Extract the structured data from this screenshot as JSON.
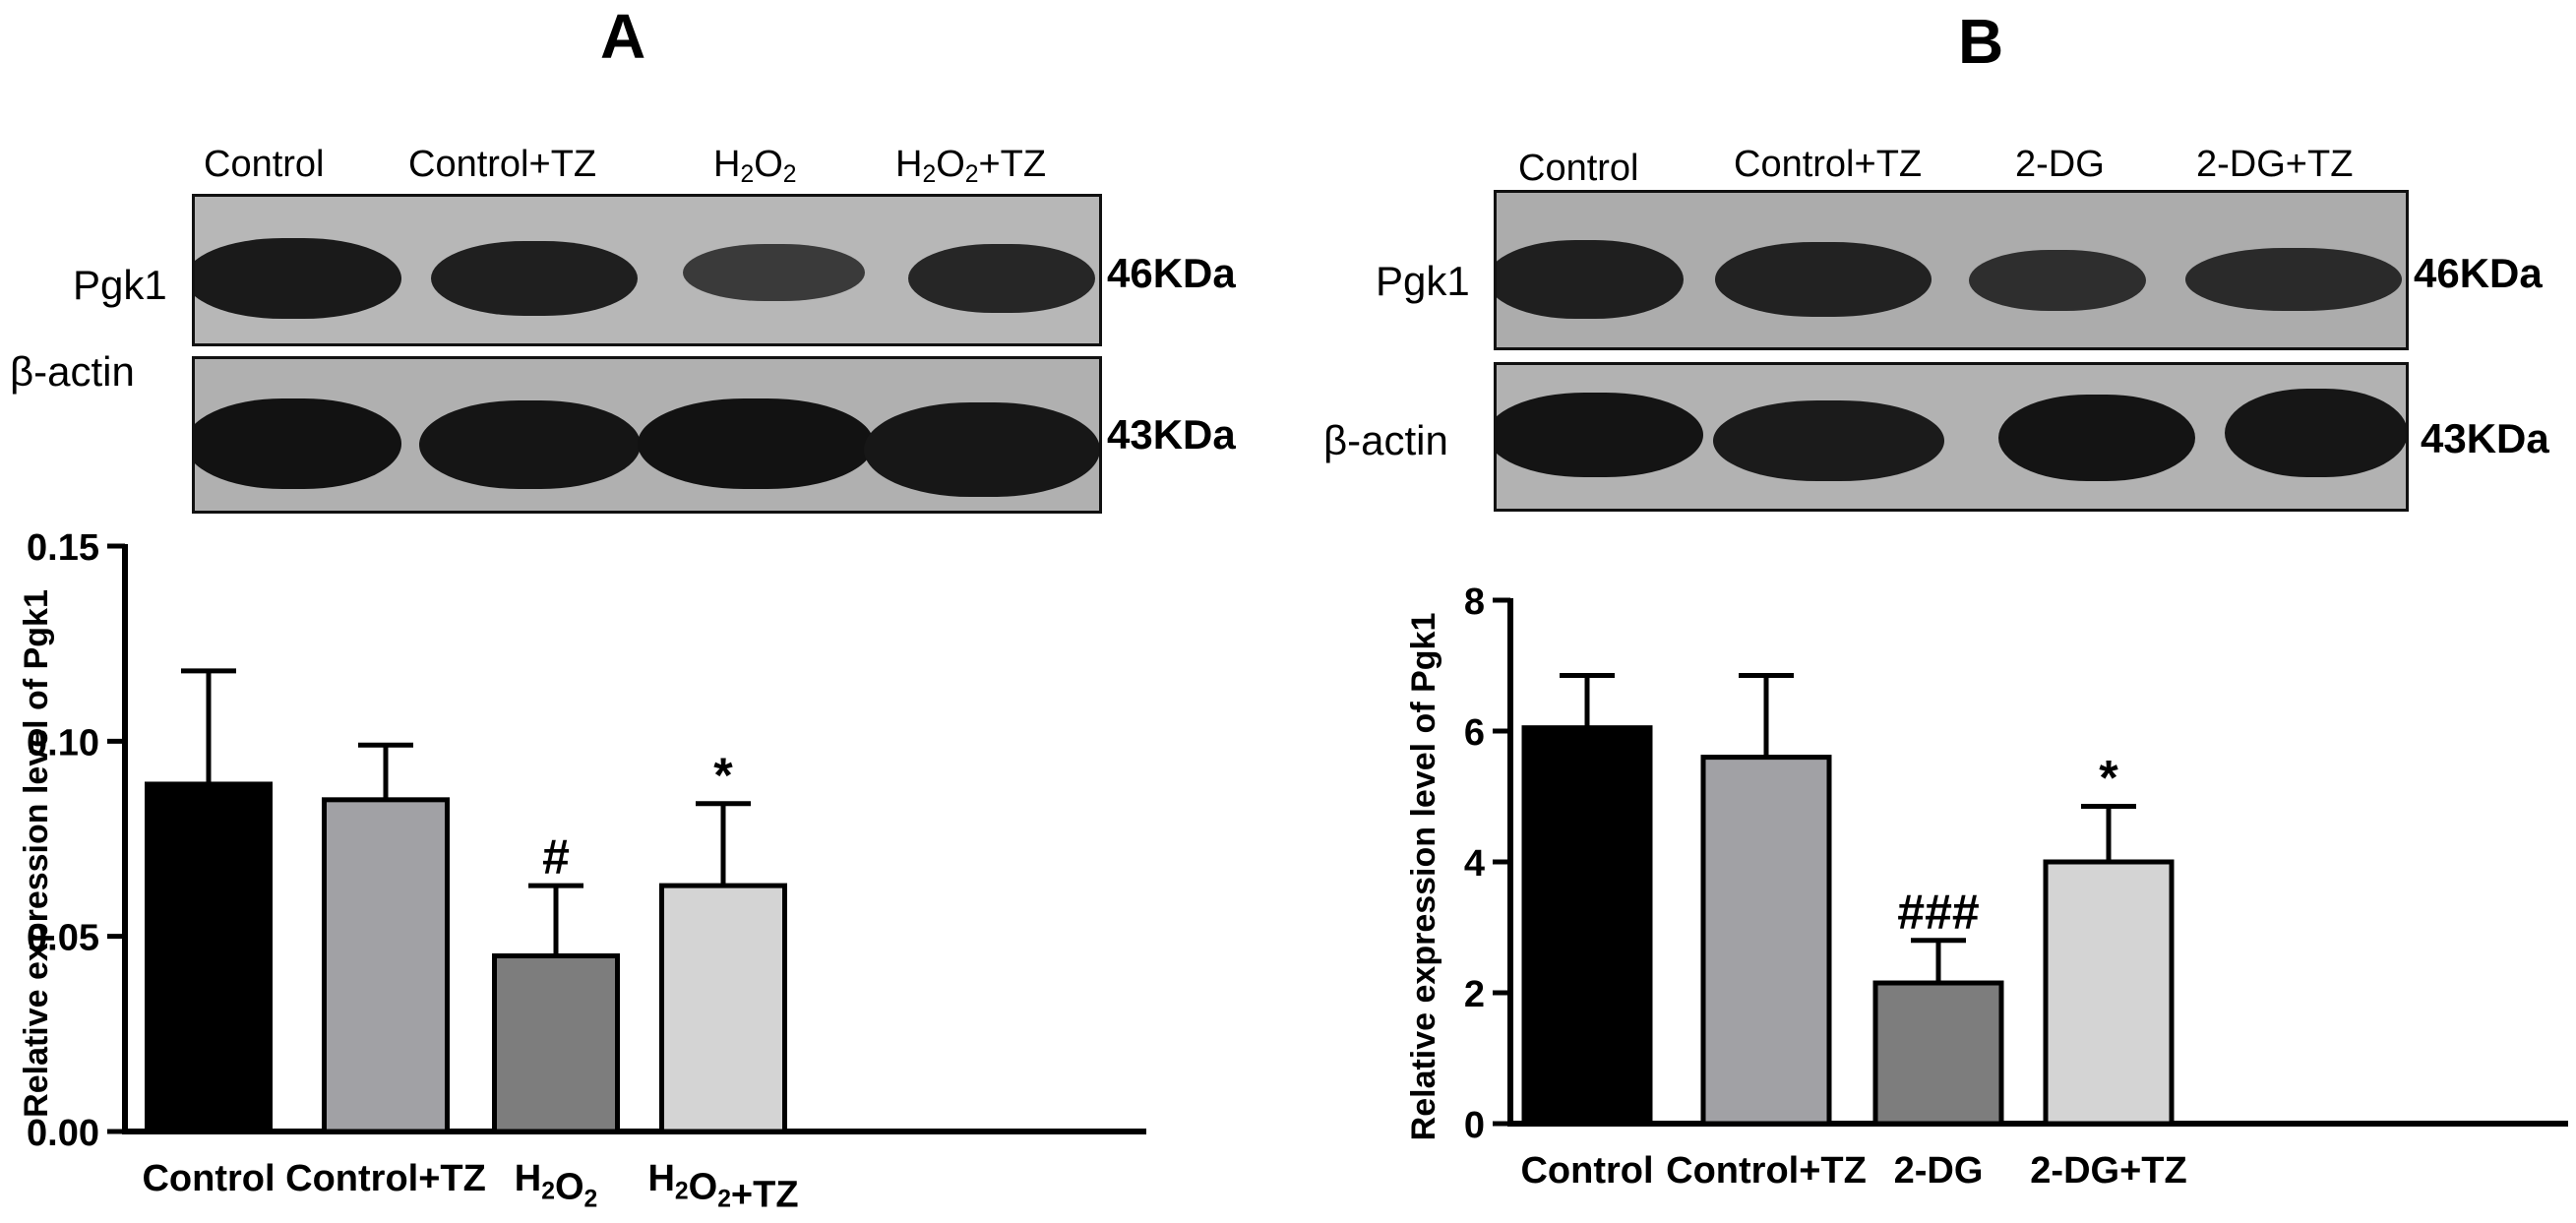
{
  "panels": [
    {
      "letter": "A",
      "lanes": [
        {
          "base": "Control",
          "parts": [
            [
              "Control",
              ""
            ]
          ]
        },
        {
          "base": "Control+TZ",
          "parts": [
            [
              "Control+TZ",
              ""
            ]
          ]
        },
        {
          "base": "H2O2",
          "parts": [
            [
              "H",
              "2"
            ],
            [
              "O",
              "2"
            ]
          ]
        },
        {
          "base": "H2O2+TZ",
          "parts": [
            [
              "H",
              "2"
            ],
            [
              "O",
              "2"
            ],
            [
              "+TZ",
              ""
            ]
          ]
        }
      ],
      "blot_rows": [
        {
          "label": "Pgk1",
          "kda": "46KDa"
        },
        {
          "label": "β-actin",
          "kda": "43KDa"
        }
      ]
    },
    {
      "letter": "B",
      "lanes": [
        {
          "base": "Control",
          "parts": [
            [
              "Control",
              ""
            ]
          ]
        },
        {
          "base": "Control+TZ",
          "parts": [
            [
              "Control+TZ",
              ""
            ]
          ]
        },
        {
          "base": "2-DG",
          "parts": [
            [
              "2-DG",
              ""
            ]
          ]
        },
        {
          "base": "2-DG+TZ",
          "parts": [
            [
              "2-DG+TZ",
              ""
            ]
          ]
        }
      ],
      "blot_rows": [
        {
          "label": "Pgk1",
          "kda": "46KDa"
        },
        {
          "label": "β-actin",
          "kda": "43KDa"
        }
      ]
    }
  ],
  "chart_data": [
    {
      "type": "bar",
      "panel": "A",
      "ylabel": "Relative expression level of Pgk1",
      "categories": [
        "Control",
        "Control+TZ",
        "H2O2",
        "H2O2+TZ"
      ],
      "values": [
        0.089,
        0.085,
        0.045,
        0.063
      ],
      "errors": [
        0.029,
        0.014,
        0.018,
        0.021
      ],
      "annotations": [
        "",
        "",
        "#",
        "*"
      ],
      "ylim": [
        0,
        0.15
      ],
      "yticks": [
        "0.00",
        "0.05",
        "0.10",
        "0.15"
      ],
      "bar_colors": [
        "#000000",
        "#a1a1a5",
        "#7d7d7d",
        "#d4d4d4"
      ]
    },
    {
      "type": "bar",
      "panel": "B",
      "ylabel": "Relative expression level of Pgk1",
      "categories": [
        "Control",
        "Control+TZ",
        "2-DG",
        "2-DG+TZ"
      ],
      "values": [
        6.05,
        5.6,
        2.15,
        4.0
      ],
      "errors": [
        0.8,
        1.25,
        0.65,
        0.85
      ],
      "annotations": [
        "",
        "",
        "###",
        "*"
      ],
      "ylim": [
        0,
        8
      ],
      "yticks": [
        "0",
        "2",
        "4",
        "6",
        "8"
      ],
      "bar_colors": [
        "#000000",
        "#a1a1a5",
        "#7d7d7d",
        "#d4d4d4"
      ]
    }
  ]
}
